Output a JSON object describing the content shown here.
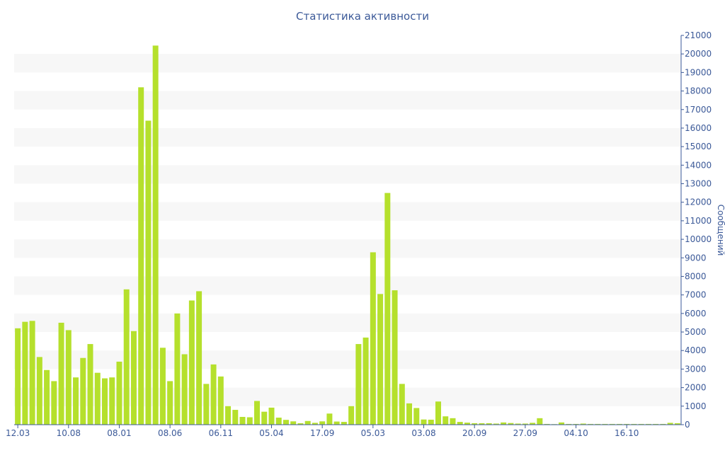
{
  "chart_data": {
    "type": "bar",
    "title": "Статистика активности",
    "xlabel": "",
    "ylabel": "Сообщений",
    "ylim": [
      0,
      21000
    ],
    "y_axis_side": "right",
    "yticks": [
      0,
      1000,
      2000,
      3000,
      4000,
      5000,
      6000,
      7000,
      8000,
      9000,
      10000,
      11000,
      12000,
      13000,
      14000,
      15000,
      16000,
      17000,
      18000,
      19000,
      20000,
      21000
    ],
    "x_tick_labels": [
      {
        "label": "12.03",
        "index": 0
      },
      {
        "label": "10.08",
        "index": 7
      },
      {
        "label": "08.01",
        "index": 14
      },
      {
        "label": "08.06",
        "index": 21
      },
      {
        "label": "06.11",
        "index": 28
      },
      {
        "label": "05.04",
        "index": 35
      },
      {
        "label": "17.09",
        "index": 42
      },
      {
        "label": "05.03",
        "index": 49
      },
      {
        "label": "03.08",
        "index": 56
      },
      {
        "label": "20.09",
        "index": 63
      },
      {
        "label": "27.09",
        "index": 70
      },
      {
        "label": "04.10",
        "index": 77
      },
      {
        "label": "16.10",
        "index": 84
      }
    ],
    "values": [
      5200,
      5550,
      5600,
      3650,
      2950,
      2350,
      5500,
      5100,
      2550,
      3600,
      4350,
      2800,
      2500,
      2550,
      3400,
      7300,
      5050,
      18200,
      16400,
      20450,
      4150,
      2350,
      6000,
      3800,
      6700,
      7200,
      2200,
      3250,
      2600,
      1000,
      800,
      420,
      400,
      1280,
      700,
      920,
      380,
      260,
      180,
      80,
      200,
      100,
      180,
      600,
      170,
      150,
      1000,
      4350,
      4700,
      9300,
      7050,
      12500,
      7250,
      2200,
      1150,
      900,
      280,
      270,
      1250,
      450,
      350,
      150,
      110,
      80,
      80,
      80,
      60,
      120,
      90,
      60,
      60,
      100,
      350,
      40,
      30,
      120,
      40,
      40,
      60,
      40,
      40,
      40,
      40,
      40,
      40,
      40,
      40,
      40,
      40,
      40,
      100,
      80
    ],
    "bar_color": "#b5e02c",
    "axis_color": "#3b5998",
    "band_color": "#f7f7f7",
    "grid": true
  }
}
